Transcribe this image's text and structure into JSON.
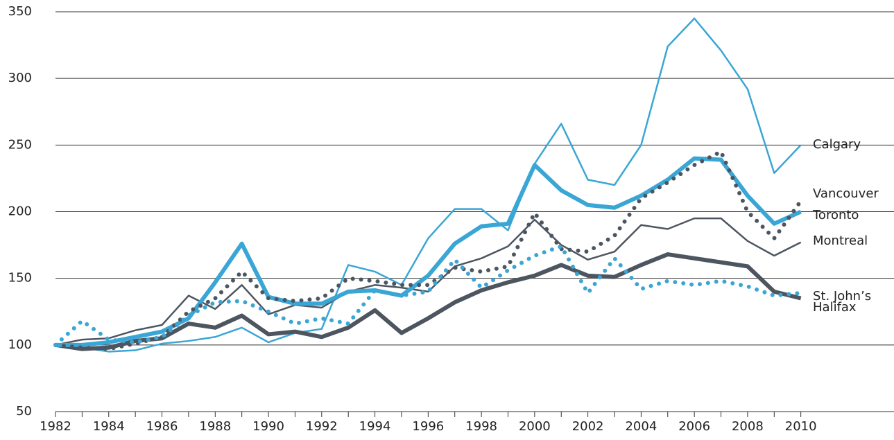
{
  "chart_data": {
    "type": "line",
    "x": [
      1982,
      1983,
      1984,
      1985,
      1986,
      1987,
      1988,
      1989,
      1990,
      1991,
      1992,
      1993,
      1994,
      1995,
      1996,
      1997,
      1998,
      1999,
      2000,
      2001,
      2002,
      2003,
      2004,
      2005,
      2006,
      2007,
      2008,
      2009,
      2010
    ],
    "series": [
      {
        "name": "Calgary",
        "color": "#3aa6d5",
        "style": "thin",
        "values": [
          100,
          98,
          95,
          96,
          101,
          103,
          106,
          113,
          102,
          109,
          112,
          160,
          155,
          145,
          180,
          202,
          202,
          186,
          236,
          266,
          224,
          220,
          250,
          324,
          345,
          321,
          292,
          229,
          250
        ]
      },
      {
        "name": "Montreal",
        "color": "#4d5660",
        "style": "thin",
        "values": [
          100,
          104,
          105,
          111,
          115,
          137,
          127,
          145,
          123,
          130,
          128,
          140,
          145,
          143,
          140,
          159,
          165,
          174,
          194,
          175,
          164,
          170,
          190,
          187,
          195,
          195,
          178,
          167,
          177
        ]
      },
      {
        "name": "Halifax",
        "color": "#4d5660",
        "style": "thick",
        "values": [
          100,
          97,
          98,
          103,
          105,
          116,
          113,
          122,
          108,
          110,
          106,
          113,
          126,
          109,
          120,
          132,
          141,
          147,
          152,
          160,
          152,
          151,
          160,
          168,
          165,
          162,
          159,
          140,
          135
        ]
      },
      {
        "name": "Toronto",
        "color": "#3aa6d5",
        "style": "thick",
        "values": [
          100,
          100,
          102,
          106,
          110,
          120,
          147,
          176,
          136,
          131,
          131,
          140,
          141,
          137,
          152,
          176,
          189,
          191,
          235,
          216,
          205,
          203,
          212,
          224,
          240,
          239,
          212,
          191,
          200
        ]
      },
      {
        "name": "Vancouver",
        "color": "#4d5660",
        "style": "dotted",
        "values": [
          100,
          98,
          97,
          101,
          106,
          125,
          135,
          155,
          135,
          133,
          135,
          150,
          148,
          145,
          145,
          158,
          155,
          159,
          199,
          172,
          170,
          182,
          210,
          222,
          235,
          245,
          200,
          180,
          208
        ]
      },
      {
        "name": "St. John’s",
        "color": "#3aa6d5",
        "style": "dotted",
        "values": [
          100,
          118,
          104,
          102,
          106,
          122,
          132,
          133,
          125,
          116,
          120,
          116,
          141,
          137,
          140,
          164,
          143,
          156,
          167,
          174,
          139,
          165,
          142,
          148,
          145,
          148,
          144,
          137,
          139
        ]
      }
    ],
    "xlim": [
      1982,
      2013.5
    ],
    "xticks": [
      1982,
      1984,
      1986,
      1988,
      1990,
      1992,
      1994,
      1996,
      1998,
      2000,
      2002,
      2004,
      2006,
      2008,
      2010
    ],
    "ylim": [
      50,
      350
    ],
    "yticks": [
      50,
      100,
      150,
      200,
      250,
      300,
      350
    ],
    "grid": true
  }
}
